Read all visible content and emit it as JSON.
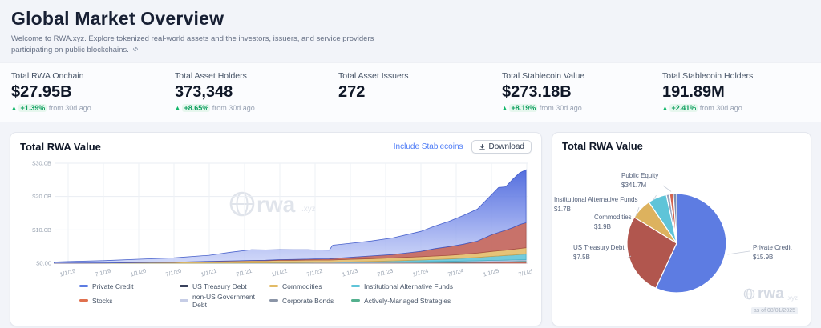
{
  "header": {
    "title": "Global Market Overview",
    "subtitle": "Welcome to RWA.xyz. Explore tokenized real-world assets and the investors, issuers, and service providers participating on public blockchains."
  },
  "stats": {
    "cards": [
      {
        "label": "Total RWA Onchain",
        "value": "$27.95B",
        "change": "+1.39%",
        "change_suffix": "from 30d ago"
      },
      {
        "label": "Total Asset Holders",
        "value": "373,348",
        "change": "+8.65%",
        "change_suffix": "from 30d ago"
      },
      {
        "label": "Total Asset Issuers",
        "value": "272"
      },
      {
        "label": "Total Stablecoin Value",
        "value": "$273.18B",
        "change": "+8.19%",
        "change_suffix": "from 30d ago"
      },
      {
        "label": "Total Stablecoin Holders",
        "value": "191.89M",
        "change": "+2.41%",
        "change_suffix": "from 30d ago"
      }
    ]
  },
  "area_card": {
    "title": "Total RWA Value",
    "include_stablecoins_label": "Include Stablecoins",
    "download_label": "Download"
  },
  "pie_card": {
    "title": "Total RWA Value",
    "watermark_brand": "rwa",
    "watermark_tld": ".xyz",
    "as_of": "as of 08/01/2025"
  },
  "colors": {
    "positive": "#12b76a",
    "accent_link": "#4e7cf6"
  },
  "chart_data": [
    {
      "type": "area",
      "stacked": true,
      "title": "Total RWA Value",
      "xlabel": "",
      "ylabel": "",
      "ylim": [
        0,
        30
      ],
      "grid": true,
      "legend_position": "bottom",
      "watermark": "rwa.xyz",
      "y_ticks": [
        0,
        10,
        20,
        30
      ],
      "y_tick_labels": [
        "$0.00",
        "$10.0B",
        "$20.0B",
        "$30.0B"
      ],
      "x_ticks": [
        2019.0,
        2019.5,
        2020.0,
        2020.5,
        2021.0,
        2021.5,
        2022.0,
        2022.5,
        2023.0,
        2023.5,
        2024.0,
        2024.5,
        2025.0,
        2025.5
      ],
      "x_tick_labels": [
        "1/1/19",
        "7/1/19",
        "1/1/20",
        "7/1/20",
        "1/1/21",
        "7/1/21",
        "1/1/22",
        "7/1/22",
        "1/1/23",
        "7/1/23",
        "1/1/24",
        "7/1/24",
        "1/1/25",
        "7/1/25"
      ],
      "unit": "$B",
      "x": [
        2018.8,
        2019.0,
        2019.5,
        2020.0,
        2020.5,
        2021.0,
        2021.3,
        2021.6,
        2021.8,
        2022.0,
        2022.2,
        2022.4,
        2022.5,
        2022.7,
        2022.75,
        2023.0,
        2023.3,
        2023.6,
        2024.0,
        2024.2,
        2024.4,
        2024.6,
        2024.8,
        2025.0,
        2025.1,
        2025.2,
        2025.3,
        2025.4,
        2025.49
      ],
      "series": [
        {
          "name": "Stocks",
          "color": "#c2604f",
          "values": [
            0,
            0,
            0,
            0,
            0,
            0.02,
            0.02,
            0.03,
            0.03,
            0.04,
            0.04,
            0.04,
            0.05,
            0.05,
            0.05,
            0.06,
            0.07,
            0.08,
            0.1,
            0.12,
            0.15,
            0.18,
            0.22,
            0.28,
            0.3,
            0.33,
            0.36,
            0.4,
            0.42
          ]
        },
        {
          "name": "Corporate Bonds",
          "color": "#8b95a7",
          "values": [
            0,
            0,
            0,
            0,
            0,
            0,
            0,
            0.02,
            0.02,
            0.03,
            0.03,
            0.04,
            0.04,
            0.04,
            0.04,
            0.05,
            0.06,
            0.07,
            0.08,
            0.09,
            0.1,
            0.11,
            0.12,
            0.13,
            0.13,
            0.14,
            0.14,
            0.15,
            0.15
          ]
        },
        {
          "name": "Actively-Managed Strategies",
          "color": "#54b08e",
          "values": [
            0,
            0,
            0,
            0,
            0,
            0,
            0,
            0,
            0,
            0,
            0,
            0,
            0,
            0,
            0,
            0.02,
            0.03,
            0.04,
            0.05,
            0.06,
            0.07,
            0.08,
            0.09,
            0.1,
            0.1,
            0.11,
            0.11,
            0.12,
            0.12
          ]
        },
        {
          "name": "non-US Government Debt",
          "color": "#c6cde6",
          "values": [
            0,
            0,
            0,
            0,
            0,
            0,
            0,
            0.05,
            0.05,
            0.1,
            0.1,
            0.12,
            0.12,
            0.13,
            0.14,
            0.15,
            0.17,
            0.2,
            0.22,
            0.24,
            0.26,
            0.28,
            0.3,
            0.32,
            0.33,
            0.34,
            0.34,
            0.35,
            0.35
          ]
        },
        {
          "name": "Institutional Alternative Funds",
          "color": "#5fc4d8",
          "values": [
            0,
            0,
            0,
            0,
            0,
            0,
            0,
            0,
            0,
            0,
            0,
            0,
            0,
            0,
            0,
            0.1,
            0.2,
            0.3,
            0.5,
            0.6,
            0.7,
            0.85,
            1.0,
            1.2,
            1.3,
            1.4,
            1.5,
            1.6,
            1.7
          ]
        },
        {
          "name": "Commodities",
          "color": "#e2bb66",
          "values": [
            0.02,
            0.05,
            0.08,
            0.2,
            0.3,
            0.5,
            0.6,
            0.65,
            0.67,
            0.7,
            0.72,
            0.73,
            0.74,
            0.75,
            0.76,
            0.8,
            0.85,
            0.9,
            1.0,
            1.05,
            1.1,
            1.2,
            1.3,
            1.5,
            1.55,
            1.6,
            1.7,
            1.8,
            1.9
          ]
        },
        {
          "name": "US Treasury Debt",
          "color": "#c05f55",
          "values": [
            0,
            0,
            0,
            0,
            0,
            0.05,
            0.08,
            0.1,
            0.12,
            0.2,
            0.25,
            0.3,
            0.32,
            0.35,
            0.4,
            0.6,
            0.8,
            1.0,
            1.6,
            2.2,
            2.6,
            3.0,
            3.6,
            5.0,
            5.5,
            6.0,
            6.5,
            7.2,
            7.5
          ]
        },
        {
          "name": "Private Credit",
          "color": "#5d7ce2",
          "values": [
            0.35,
            0.45,
            0.7,
            1.0,
            1.3,
            1.8,
            2.6,
            3.2,
            3.1,
            3.0,
            2.9,
            2.8,
            2.7,
            2.6,
            4.0,
            4.2,
            4.5,
            5.0,
            6.0,
            6.8,
            7.6,
            8.6,
            9.6,
            12.0,
            13.5,
            13.0,
            14.5,
            15.5,
            15.9
          ]
        }
      ],
      "legend": [
        {
          "label": "Private Credit",
          "color": "#5d7ce2"
        },
        {
          "label": "US Treasury Debt",
          "color": "#39415c"
        },
        {
          "label": "Commodities",
          "color": "#e2bb66"
        },
        {
          "label": "Institutional Alternative Funds",
          "color": "#5fc4d8"
        },
        {
          "label": "Stocks",
          "color": "#e0704e"
        },
        {
          "label": "non-US Government Debt",
          "color": "#c6cde6"
        },
        {
          "label": "Corporate Bonds",
          "color": "#8b95a7"
        },
        {
          "label": "Actively-Managed Strategies",
          "color": "#54b08e"
        }
      ]
    },
    {
      "type": "pie",
      "title": "Total RWA Value",
      "unit": "$B",
      "slices": [
        {
          "label": "Private Credit",
          "value": 15.9,
          "display": "$15.9B",
          "color": "#5d7ce2"
        },
        {
          "label": "US Treasury Debt",
          "value": 7.5,
          "display": "$7.5B",
          "color": "#b1564e"
        },
        {
          "label": "Commodities",
          "value": 1.9,
          "display": "$1.9B",
          "color": "#ddb25e"
        },
        {
          "label": "Institutional Alternative Funds",
          "value": 1.7,
          "display": "$1.7B",
          "color": "#5fc4d8"
        },
        {
          "label": "",
          "value": 0.3,
          "display": "",
          "color": "#97a4bd"
        },
        {
          "label": "Public Equity",
          "value": 0.3417,
          "display": "$341.7M",
          "color": "#d2624f"
        },
        {
          "label": "",
          "value": 0.3,
          "display": "",
          "color": "#7d8fb3"
        }
      ]
    }
  ]
}
